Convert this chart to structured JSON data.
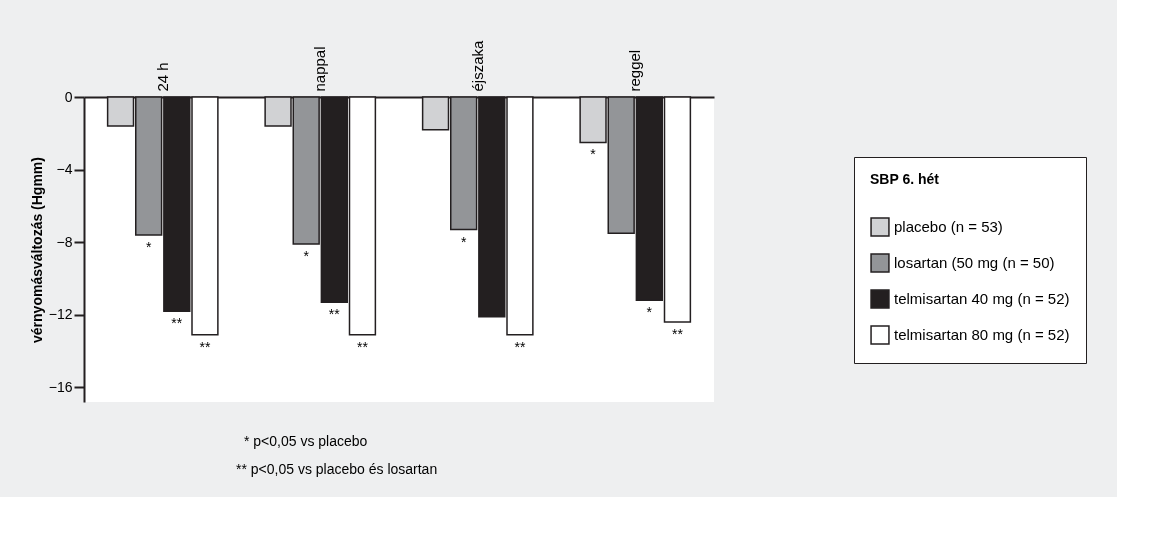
{
  "chart_data": {
    "type": "bar",
    "legend_title": "SBP 6. hét",
    "ylabel": "vérnyomásváltozás (Hgmm)",
    "categories": [
      "24 h",
      "nappal",
      "éjszaka",
      "reggel"
    ],
    "series": [
      {
        "name": "placebo (n = 53)",
        "color": "#d1d2d4",
        "values": [
          -1.6,
          -1.6,
          -1.8,
          -2.5
        ],
        "value_labels": [
          null,
          null,
          null,
          "*"
        ]
      },
      {
        "name": "losartan (50 mg (n = 50)",
        "color": "#939598",
        "values": [
          -7.6,
          -8.1,
          -7.3,
          -7.5
        ],
        "value_labels": [
          "*",
          "*",
          "*",
          null
        ]
      },
      {
        "name": "telmisartan 40 mg (n = 52)",
        "color": "#231f20",
        "values": [
          -11.8,
          -11.3,
          -12.1,
          -11.2
        ],
        "value_labels": [
          "**",
          "**",
          null,
          "*"
        ]
      },
      {
        "name": "telmisartan 80 mg (n = 52)",
        "color": "#ffffff",
        "values": [
          -13.1,
          -13.1,
          -13.1,
          -12.4
        ],
        "value_labels": [
          "**",
          "**",
          "**",
          "**"
        ]
      }
    ],
    "ylim": [
      -16.8,
      0
    ],
    "yticks": [
      0,
      -4,
      -8,
      -12,
      -16
    ],
    "grid": false,
    "legend": "right",
    "annotations": [
      "* p<0,05 vs placebo",
      "** p<0,05 vs placebo és losartan"
    ]
  }
}
